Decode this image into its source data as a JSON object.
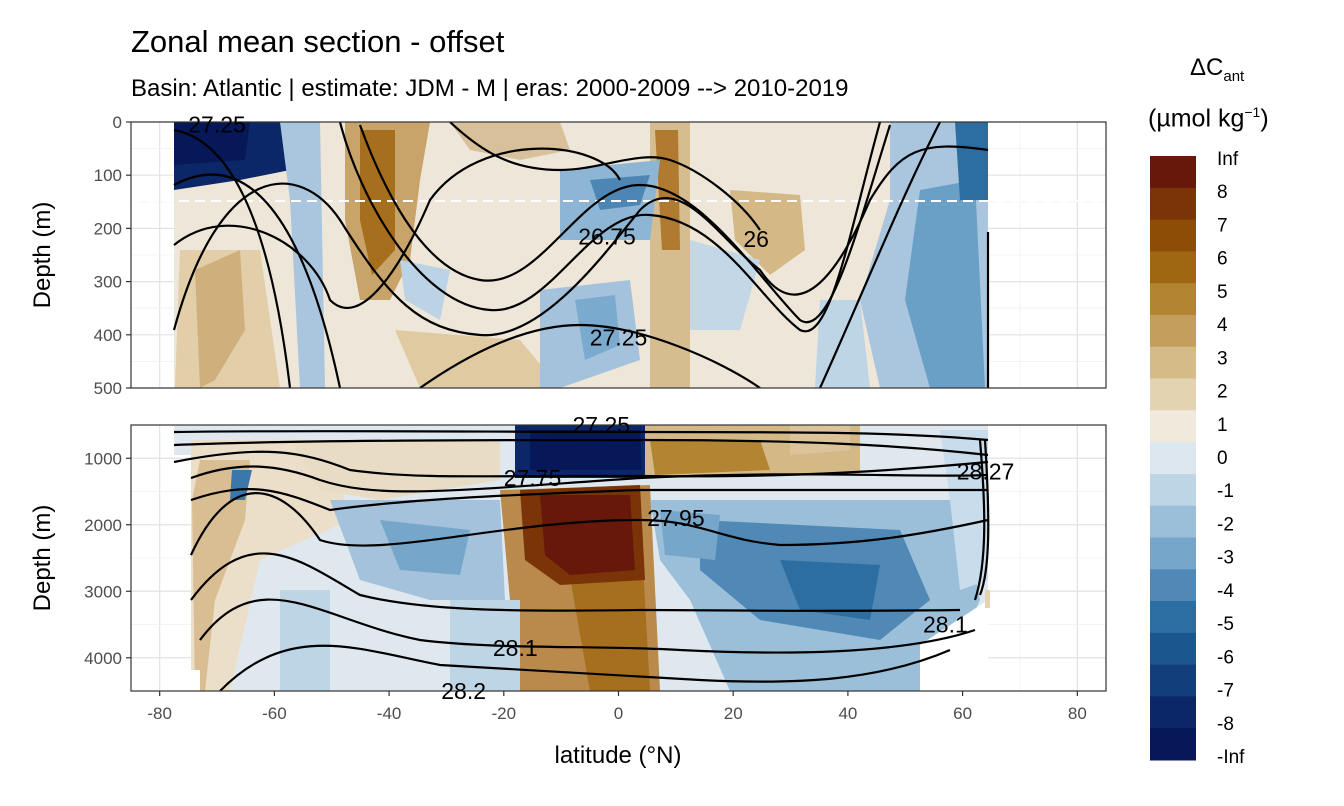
{
  "chart_data": {
    "type": "heatmap",
    "title": "Zonal mean section - offset",
    "subtitle": "Basin: Atlantic | estimate: JDM - M | eras: 2000-2009 --> 2010-2019",
    "xlabel": "latitude (°N)",
    "ylabel": "Depth (m)",
    "xlim": [
      -85,
      85
    ],
    "x_ticks": [
      -80,
      -60,
      -40,
      -20,
      0,
      20,
      40,
      60,
      80
    ],
    "panels": [
      {
        "name": "upper",
        "ylim": [
          0,
          500
        ],
        "y_ticks": [
          0,
          100,
          200,
          300,
          400,
          500
        ],
        "reference_depth": 150,
        "contour_labels": [
          {
            "text": "27.25",
            "lat": -70,
            "depth": 5
          },
          {
            "text": "26.75",
            "lat": -2,
            "depth": 215
          },
          {
            "text": "26",
            "lat": 24,
            "depth": 220
          },
          {
            "text": "27.25",
            "lat": 0,
            "depth": 405
          }
        ]
      },
      {
        "name": "lower",
        "ylim": [
          500,
          4500
        ],
        "y_ticks": [
          1000,
          2000,
          3000,
          4000
        ],
        "contour_labels": [
          {
            "text": "27.25",
            "lat": -3,
            "depth": 460
          },
          {
            "text": "27.75",
            "lat": -15,
            "depth": 1300
          },
          {
            "text": "27.95",
            "lat": 10,
            "depth": 1900
          },
          {
            "text": "28.1",
            "lat": -18,
            "depth": 3850
          },
          {
            "text": "28.2",
            "lat": -27,
            "depth": 4500
          },
          {
            "text": "28.1",
            "lat": 57,
            "depth": 3500
          },
          {
            "text": "28.27",
            "lat": 64,
            "depth": 1200
          }
        ]
      }
    ],
    "legend": {
      "title_main": "ΔC",
      "title_sub": "ant",
      "units_main": "(µmol kg",
      "units_sup": "−1",
      "units_close": ")",
      "labels": [
        "Inf",
        "8",
        "7",
        "6",
        "5",
        "4",
        "3",
        "2",
        "1",
        "0",
        "-1",
        "-2",
        "-3",
        "-4",
        "-5",
        "-6",
        "-7",
        "-8",
        "-Inf"
      ],
      "colors": [
        "#67180a",
        "#7a3408",
        "#8e4d07",
        "#a06712",
        "#b38431",
        "#c49e5c",
        "#d4bb88",
        "#e4d3b1",
        "#f0e9dc",
        "#dde7ef",
        "#bed5e6",
        "#9bbfd9",
        "#76a7ca",
        "#5089b6",
        "#2d6ea2",
        "#1c568f",
        "#123f7b",
        "#0b2767",
        "#061858"
      ]
    }
  }
}
